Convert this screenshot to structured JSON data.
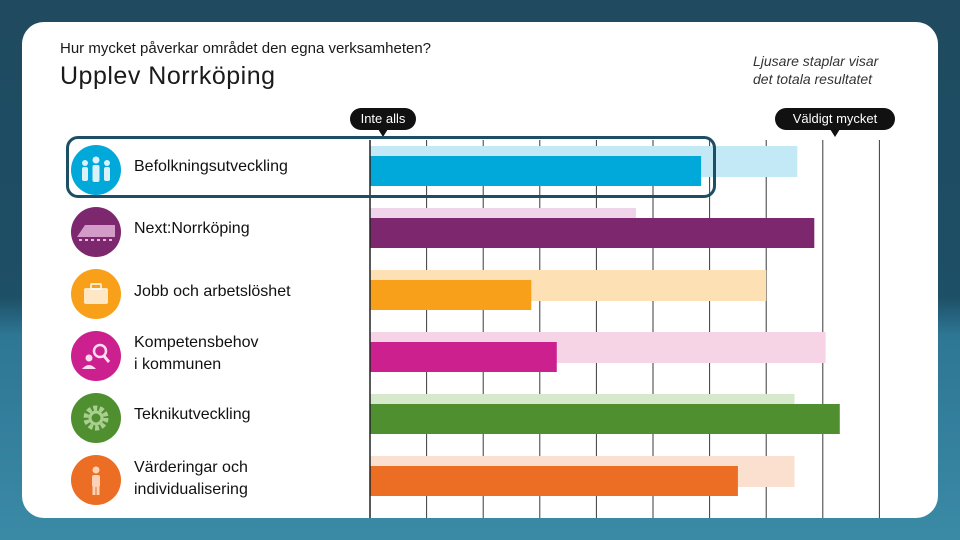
{
  "header": {
    "question": "Hur mycket påverkar området den egna verksamheten?",
    "title": "Upplev Norrköping",
    "note_line1": "Ljusare staplar visar",
    "note_line2": "det totala resultatet"
  },
  "scale": {
    "min_label": "Inte alls",
    "max_label": "Väldigt mycket"
  },
  "chart_data": {
    "type": "bar",
    "orientation": "horizontal",
    "xlim": [
      0,
      9
    ],
    "grid": true,
    "categories": [
      "Befolkningsutveckling",
      "Next:Norrköping",
      "Jobb och arbetslöshet",
      "Kompetensbehov i kommunen",
      "Teknikutveckling",
      "Värderingar och individualisering"
    ],
    "series": [
      {
        "values": [
          5.85,
          7.85,
          2.85,
          3.3,
          8.3,
          6.5
        ]
      },
      {
        "values": [
          7.55,
          4.7,
          7.0,
          8.05,
          7.5,
          7.5
        ]
      }
    ],
    "colors": [
      "#00a9d9",
      "#7d276e",
      "#f9a01b",
      "#cc208e",
      "#4f8f2f",
      "#ec6e24"
    ],
    "light_colors": [
      "#c3e8f6",
      "#efd4ea",
      "#fde0b4",
      "#f7d3e6",
      "#d6e9cd",
      "#fbe0cf"
    ],
    "highlighted_index": 0
  },
  "rows": [
    {
      "label_line1": "Befolkningsutveckling",
      "label_line2": "",
      "icon": "people-group-icon"
    },
    {
      "label_line1": "Next:Norrköping",
      "label_line2": "",
      "icon": "train-icon"
    },
    {
      "label_line1": "Jobb och arbetslöshet",
      "label_line2": "",
      "icon": "briefcase-icon"
    },
    {
      "label_line1": "Kompetensbehov",
      "label_line2": "i kommunen",
      "icon": "person-search-icon"
    },
    {
      "label_line1": "Teknikutveckling",
      "label_line2": "",
      "icon": "gear-icon"
    },
    {
      "label_line1": "Värderingar och",
      "label_line2": "individualisering",
      "icon": "person-icon"
    }
  ]
}
